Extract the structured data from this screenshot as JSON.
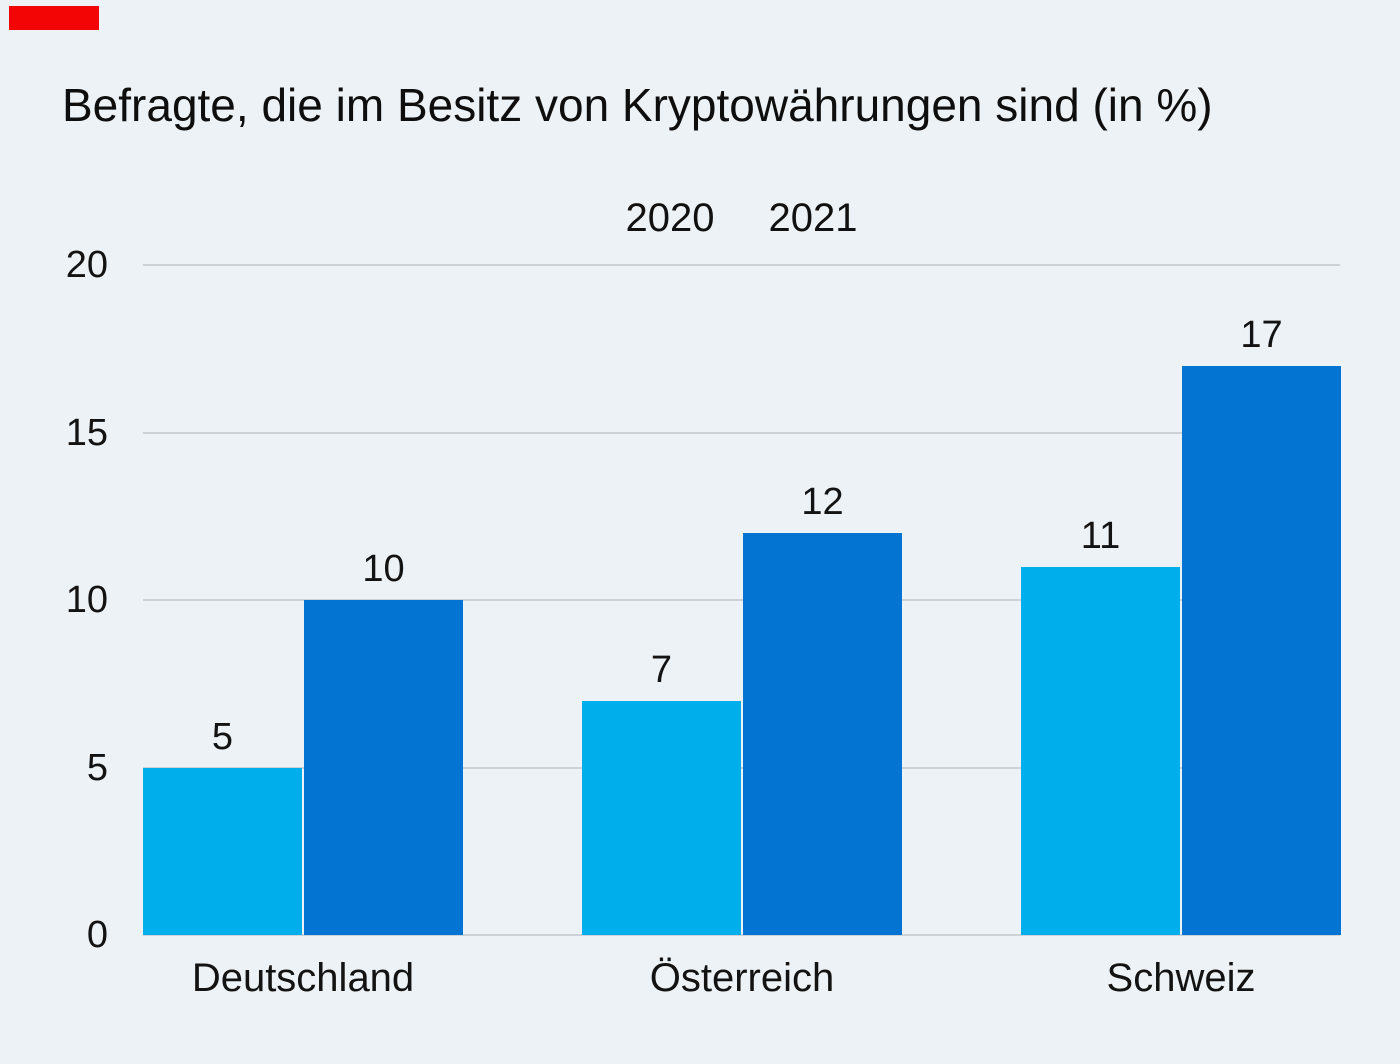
{
  "background_color": "#edf2f6",
  "marker": {
    "color": "#f40505"
  },
  "text_color": "#131313",
  "gridline_color": "#cdd2d7",
  "chart_data": {
    "type": "bar",
    "title": "Befragte, die im Besitz von Kryptowährungen sind (in %)",
    "categories": [
      "Deutschland",
      "Österreich",
      "Schweiz"
    ],
    "series": [
      {
        "name": "2020",
        "color": "#00aeec",
        "values": [
          5,
          7,
          11
        ]
      },
      {
        "name": "2021",
        "color": "#0474d3",
        "values": [
          10,
          12,
          17
        ]
      }
    ],
    "xlabel": "",
    "ylabel": "",
    "ylim": [
      0,
      20
    ],
    "yticks": [
      0,
      5,
      10,
      15,
      20
    ],
    "grid": true,
    "legend_position": "top-center",
    "value_labels": true
  }
}
